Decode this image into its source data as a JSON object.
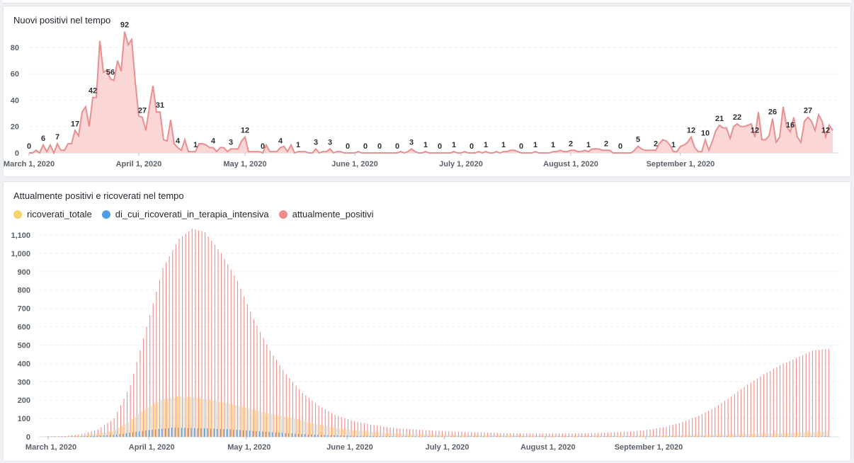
{
  "chart_data": [
    {
      "type": "area",
      "title": "Nuovi positivi nel tempo",
      "x_start": "2020-03-01",
      "x_ticks": [
        "March 1, 2020",
        "April 1, 2020",
        "May 1, 2020",
        "June 1, 2020",
        "July 1, 2020",
        "August 1, 2020",
        "September 1, 2020"
      ],
      "y_ticks": [
        "0",
        "20",
        "40",
        "60",
        "80"
      ],
      "ylim": [
        0,
        95
      ],
      "color": "#e88f8f",
      "fill": "#fad6d6",
      "values": [
        0,
        0,
        2,
        0,
        6,
        1,
        6,
        0,
        7,
        2,
        2,
        7,
        7,
        17,
        13,
        31,
        35,
        20,
        42,
        42,
        85,
        61,
        63,
        56,
        55,
        70,
        62,
        92,
        82,
        86,
        54,
        28,
        27,
        17,
        35,
        51,
        31,
        31,
        10,
        9,
        25,
        7,
        4,
        2,
        10,
        1,
        1,
        1,
        7,
        7,
        6,
        4,
        4,
        1,
        4,
        4,
        1,
        3,
        3,
        3,
        9,
        12,
        1,
        1,
        1,
        1,
        0,
        6,
        1,
        1,
        1,
        4,
        5,
        1,
        6,
        0,
        1,
        1,
        1,
        0,
        0,
        3,
        0,
        1,
        1,
        3,
        0,
        1,
        1,
        0,
        0,
        0,
        0,
        1,
        0,
        0,
        0,
        0,
        0,
        0,
        0,
        0,
        0,
        0,
        0,
        1,
        0,
        1,
        3,
        1,
        0,
        0,
        1,
        0,
        0,
        0,
        0,
        0,
        0,
        0,
        1,
        0,
        0,
        1,
        0,
        0,
        0,
        1,
        0,
        1,
        0,
        0,
        1,
        0,
        1,
        1,
        2,
        2,
        1,
        0,
        0,
        0,
        0,
        1,
        0,
        0,
        0,
        0,
        1,
        1,
        2,
        1,
        1,
        2,
        2,
        1,
        1,
        2,
        1,
        3,
        3,
        3,
        2,
        2,
        2,
        0,
        0,
        0,
        0,
        0,
        0,
        2,
        5,
        3,
        2,
        2,
        2,
        2,
        7,
        10,
        9,
        6,
        1,
        1,
        5,
        6,
        8,
        12,
        4,
        1,
        1,
        10,
        2,
        9,
        17,
        21,
        19,
        19,
        11,
        20,
        22,
        20,
        20,
        21,
        22,
        12,
        31,
        10,
        10,
        13,
        26,
        8,
        12,
        35,
        20,
        16,
        27,
        12,
        8,
        24,
        27,
        24,
        17,
        29,
        24,
        12,
        21,
        17
      ]
    },
    {
      "type": "bar",
      "title": "Attualmente positivi e ricoverati nel tempo",
      "x_start": "2020-03-01",
      "x_ticks": [
        "March 1, 2020",
        "April 1, 2020",
        "May 1, 2020",
        "June 1, 2020",
        "July 1, 2020",
        "August 1, 2020",
        "September 1, 2020"
      ],
      "y_ticks": [
        "0",
        "100",
        "200",
        "300",
        "400",
        "500",
        "600",
        "700",
        "800",
        "900",
        "1,000",
        "1,100"
      ],
      "ylim": [
        0,
        1150
      ],
      "legend": "top-left",
      "series": [
        {
          "name": "ricoverati_totale",
          "color": "#f5d36d"
        },
        {
          "name": "di_cui_ricoverati_in_terapia_intensiva",
          "color": "#509ee3"
        },
        {
          "name": "attualmente_positivi",
          "color": "#ef8c8c"
        }
      ],
      "positivi_keypoints": [
        [
          0,
          0
        ],
        [
          5,
          5
        ],
        [
          10,
          15
        ],
        [
          15,
          40
        ],
        [
          20,
          100
        ],
        [
          25,
          280
        ],
        [
          30,
          600
        ],
        [
          35,
          920
        ],
        [
          40,
          1080
        ],
        [
          44,
          1135
        ],
        [
          48,
          1115
        ],
        [
          53,
          1000
        ],
        [
          58,
          850
        ],
        [
          63,
          640
        ],
        [
          68,
          470
        ],
        [
          73,
          340
        ],
        [
          78,
          240
        ],
        [
          83,
          170
        ],
        [
          88,
          120
        ],
        [
          93,
          90
        ],
        [
          98,
          70
        ],
        [
          103,
          55
        ],
        [
          108,
          45
        ],
        [
          113,
          40
        ],
        [
          120,
          32
        ],
        [
          130,
          26
        ],
        [
          140,
          20
        ],
        [
          150,
          18
        ],
        [
          160,
          18
        ],
        [
          170,
          22
        ],
        [
          180,
          30
        ],
        [
          185,
          40
        ],
        [
          190,
          55
        ],
        [
          195,
          80
        ],
        [
          200,
          115
        ],
        [
          205,
          160
        ],
        [
          210,
          220
        ],
        [
          215,
          285
        ],
        [
          220,
          340
        ],
        [
          225,
          390
        ],
        [
          230,
          430
        ],
        [
          235,
          470
        ],
        [
          240,
          480
        ]
      ],
      "ricoverati_keypoints": [
        [
          0,
          0
        ],
        [
          10,
          5
        ],
        [
          20,
          30
        ],
        [
          25,
          80
        ],
        [
          30,
          150
        ],
        [
          35,
          200
        ],
        [
          40,
          220
        ],
        [
          45,
          215
        ],
        [
          50,
          200
        ],
        [
          55,
          185
        ],
        [
          60,
          165
        ],
        [
          65,
          140
        ],
        [
          70,
          120
        ],
        [
          75,
          105
        ],
        [
          80,
          80
        ],
        [
          85,
          60
        ],
        [
          90,
          45
        ],
        [
          100,
          25
        ],
        [
          110,
          15
        ],
        [
          125,
          10
        ],
        [
          150,
          6
        ],
        [
          180,
          6
        ],
        [
          200,
          10
        ],
        [
          215,
          15
        ],
        [
          230,
          22
        ],
        [
          240,
          28
        ]
      ],
      "intensiva_keypoints": [
        [
          0,
          0
        ],
        [
          10,
          2
        ],
        [
          20,
          10
        ],
        [
          30,
          35
        ],
        [
          38,
          50
        ],
        [
          45,
          48
        ],
        [
          55,
          42
        ],
        [
          65,
          30
        ],
        [
          75,
          18
        ],
        [
          85,
          9
        ],
        [
          95,
          5
        ],
        [
          110,
          2
        ],
        [
          130,
          1
        ],
        [
          240,
          1
        ]
      ]
    }
  ]
}
